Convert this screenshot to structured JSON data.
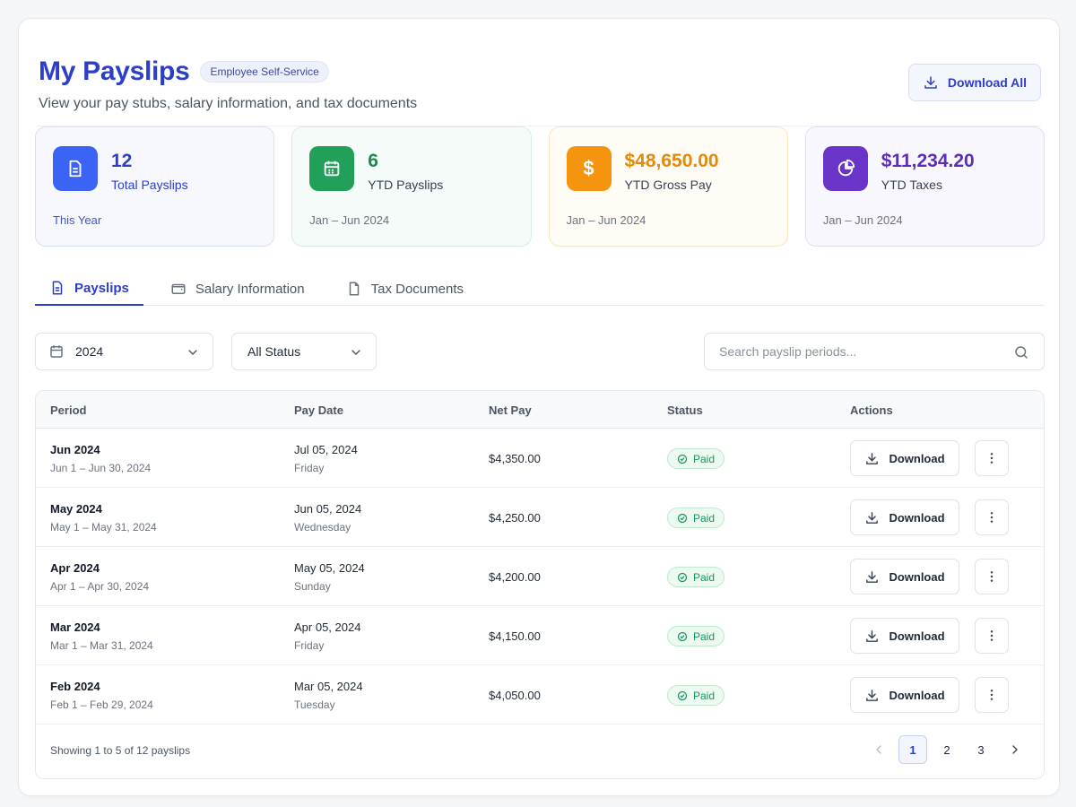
{
  "header": {
    "title": "My Payslips",
    "badge": "Employee Self-Service",
    "subtitle": "View your pay stubs, salary information, and tax documents",
    "download_all_label": "Download All"
  },
  "cards": [
    {
      "value": "12",
      "label": "Total Payslips",
      "foot": "This Year",
      "icon": "document-icon",
      "color": "#3b64f5"
    },
    {
      "value": "6",
      "label": "YTD Payslips",
      "foot": "Jan – Jun 2024",
      "icon": "calendar-icon",
      "color": "#22a05a"
    },
    {
      "value": "$48,650.00",
      "label": "YTD Gross Pay",
      "foot": "Jan – Jun 2024",
      "icon": "dollar-icon",
      "color": "#f5940f"
    },
    {
      "value": "$11,234.20",
      "label": "YTD Taxes",
      "foot": "Jan – Jun 2024",
      "icon": "pie-chart-icon",
      "color": "#6a34c9"
    }
  ],
  "tabs": [
    {
      "label": "Payslips",
      "icon": "document-icon",
      "active": true
    },
    {
      "label": "Salary Information",
      "icon": "wallet-icon",
      "active": false
    },
    {
      "label": "Tax Documents",
      "icon": "file-icon",
      "active": false
    }
  ],
  "filters": {
    "year": "2024",
    "status": "All Status",
    "search_placeholder": "Search payslip periods..."
  },
  "table": {
    "headers": [
      "Period",
      "Pay Date",
      "Net Pay",
      "Status",
      "Actions"
    ],
    "rows": [
      {
        "period": "Jun 2024",
        "range": "Jun 1 – Jun 30, 2024",
        "pay_date": "Jul 05, 2024",
        "weekday": "Friday",
        "net_pay": "$4,350.00",
        "status": "Paid",
        "action": "Download"
      },
      {
        "period": "May 2024",
        "range": "May 1 – May 31, 2024",
        "pay_date": "Jun 05, 2024",
        "weekday": "Wednesday",
        "net_pay": "$4,250.00",
        "status": "Paid",
        "action": "Download"
      },
      {
        "period": "Apr 2024",
        "range": "Apr 1 – Apr 30, 2024",
        "pay_date": "May 05, 2024",
        "weekday": "Sunday",
        "net_pay": "$4,200.00",
        "status": "Paid",
        "action": "Download"
      },
      {
        "period": "Mar 2024",
        "range": "Mar 1 – Mar 31, 2024",
        "pay_date": "Apr 05, 2024",
        "weekday": "Friday",
        "net_pay": "$4,150.00",
        "status": "Paid",
        "action": "Download"
      },
      {
        "period": "Feb 2024",
        "range": "Feb 1 – Feb 29, 2024",
        "pay_date": "Mar 05, 2024",
        "weekday": "Tuesday",
        "net_pay": "$4,050.00",
        "status": "Paid",
        "action": "Download"
      }
    ],
    "footer_text": "Showing 1 to 5 of 12 payslips"
  },
  "pagination": {
    "pages": [
      "1",
      "2",
      "3"
    ],
    "current": "1"
  },
  "colors": {
    "accent": "#2d3ec9",
    "paid": "#18965a"
  }
}
